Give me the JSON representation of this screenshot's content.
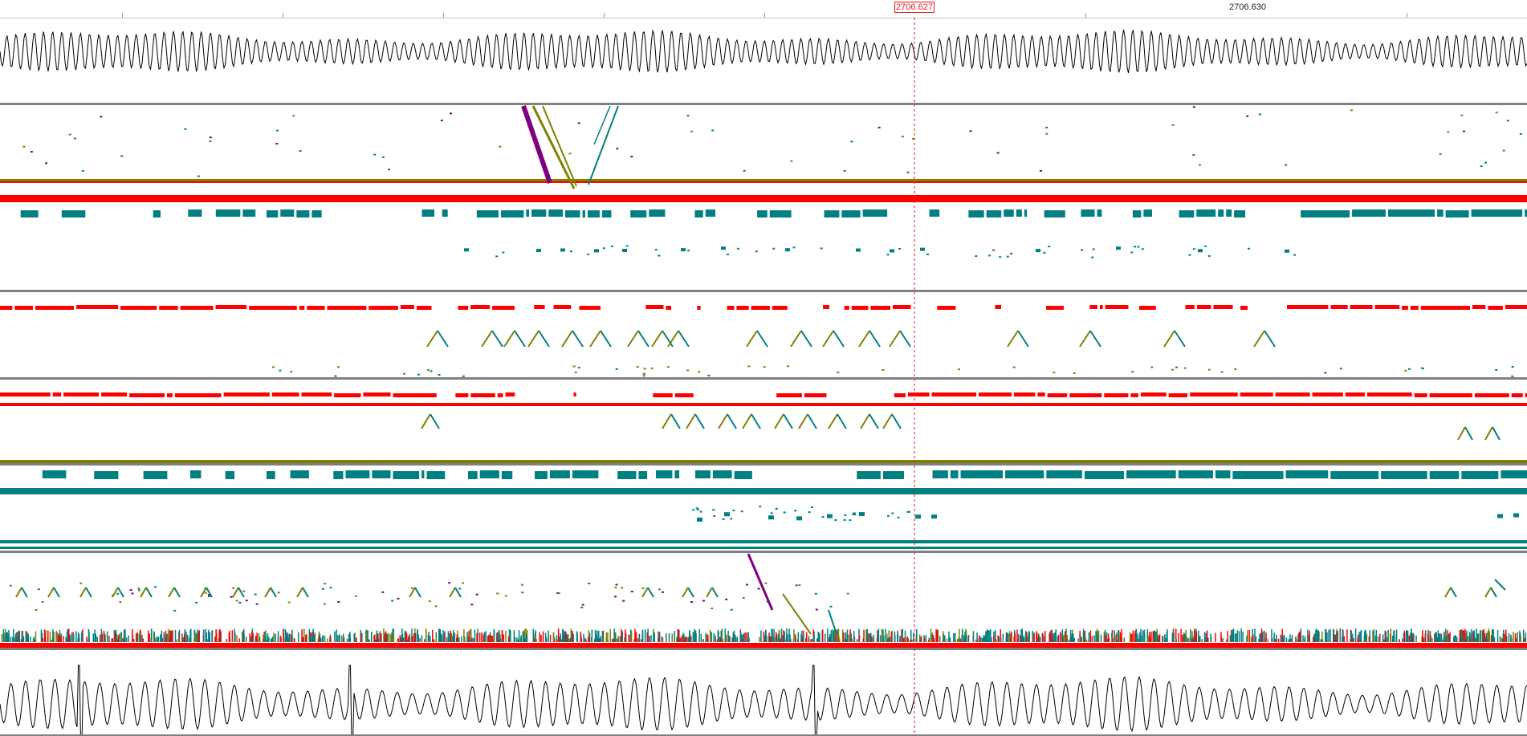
{
  "ruler": {
    "cursor_label": "2706.627",
    "tick_label": "2706.630"
  },
  "colors": {
    "waveform": "#000000",
    "red": "#ff0000",
    "teal": "#008080",
    "olive": "#808000",
    "purple": "#800080",
    "divider": "#808080",
    "cursor": "#e41a1c"
  },
  "tracks": [
    {
      "name": "waveform-top",
      "type": "waveform"
    },
    {
      "name": "track-1",
      "type": "spectral-lines"
    },
    {
      "name": "track-2",
      "type": "spectral-lines"
    },
    {
      "name": "track-3",
      "type": "spectral-lines"
    },
    {
      "name": "track-4",
      "type": "spectral-lines"
    },
    {
      "name": "track-5",
      "type": "spectral-lines"
    },
    {
      "name": "waveform-bottom",
      "type": "waveform"
    }
  ]
}
